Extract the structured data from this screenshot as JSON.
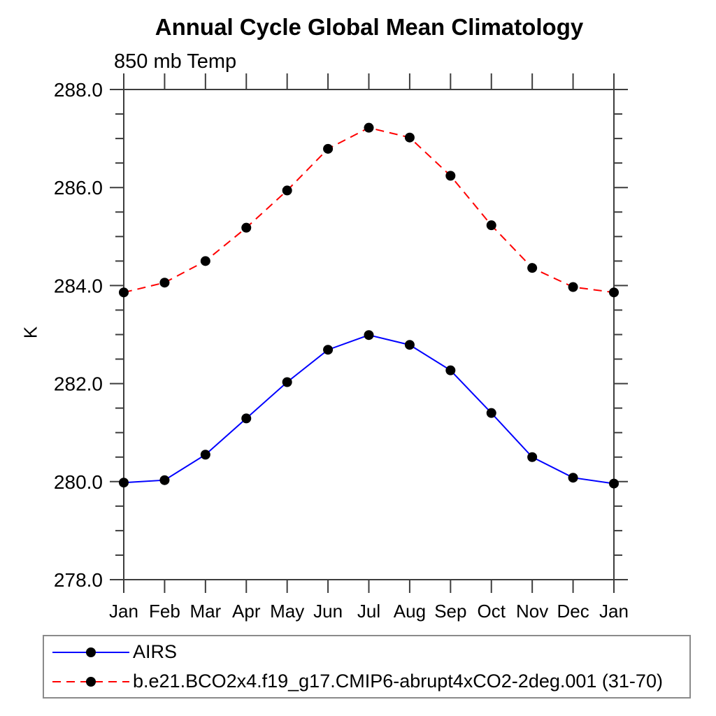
{
  "chart_data": {
    "type": "line",
    "title": "Annual Cycle Global Mean Climatology",
    "subtitle": "850 mb Temp",
    "ylabel": "K",
    "xlabel": "",
    "categories": [
      "Jan",
      "Feb",
      "Mar",
      "Apr",
      "May",
      "Jun",
      "Jul",
      "Aug",
      "Sep",
      "Oct",
      "Nov",
      "Dec",
      "Jan"
    ],
    "ylim": [
      278.0,
      288.0
    ],
    "ytick_major_step": 2.0,
    "ytick_minor_step": 0.5,
    "ytick_labels": [
      "278.0",
      "280.0",
      "282.0",
      "284.0",
      "286.0",
      "288.0"
    ],
    "grid": false,
    "legend_position": "bottom-left",
    "axis_color": "#3d3d3d",
    "marker_color": "#000000",
    "series": [
      {
        "name": "AIRS",
        "color": "#0000ff",
        "line_style": "solid",
        "marker": "filled-circle",
        "values": [
          279.98,
          280.03,
          280.55,
          281.29,
          282.03,
          282.69,
          282.99,
          282.79,
          282.27,
          281.4,
          280.5,
          280.08,
          279.96
        ]
      },
      {
        "name": "b.e21.BCO2x4.f19_g17.CMIP6-abrupt4xCO2-2deg.001 (31-70)",
        "color": "#ff0000",
        "line_style": "dashed",
        "marker": "filled-circle",
        "values": [
          283.86,
          284.06,
          284.5,
          285.18,
          285.94,
          286.79,
          287.22,
          287.02,
          286.24,
          285.23,
          284.36,
          283.97,
          283.86
        ]
      }
    ]
  }
}
